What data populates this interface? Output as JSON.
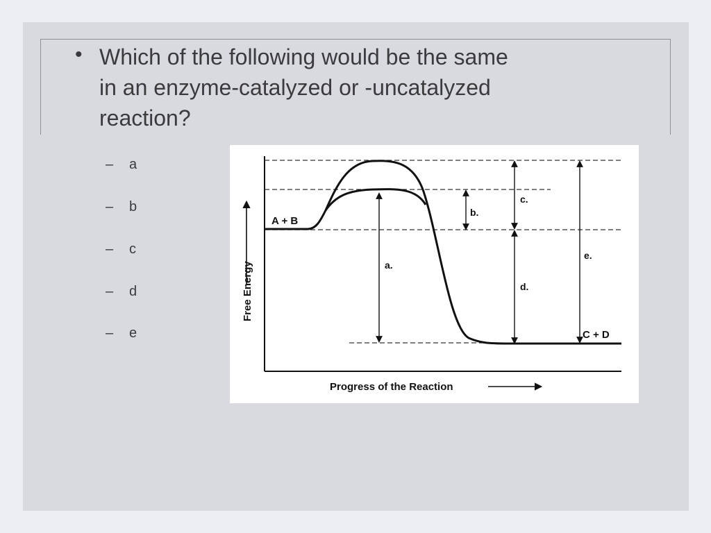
{
  "question": "Which of the following would be the same in an enzyme-catalyzed or -uncatalyzed reaction?",
  "options": [
    "a",
    "b",
    "c",
    "d",
    "e"
  ],
  "diagram": {
    "y_axis_label": "Free Energy",
    "x_axis_label": "Progress of the Reaction",
    "reactants_label": "A + B",
    "products_label": "C + D",
    "labels": {
      "a": "a.",
      "b": "b.",
      "c": "c.",
      "d": "d.",
      "e": "e."
    }
  }
}
